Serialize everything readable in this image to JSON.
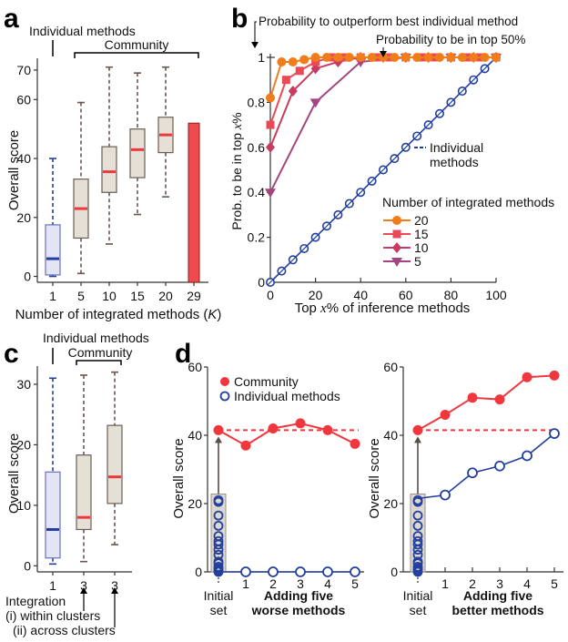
{
  "chart_data": [
    {
      "panel": "a",
      "type": "box",
      "annotations": {
        "individual": "Individual methods",
        "community": "Community"
      },
      "xlabel": "Number of integrated methods (",
      "xlabel_italic": "K",
      "xlabel_end": ")",
      "ylabel": "Overall score",
      "yticks": [
        0,
        20,
        40,
        60,
        70
      ],
      "ylim": [
        -2,
        74
      ],
      "categories": [
        "1",
        "5",
        "10",
        "15",
        "20",
        "29"
      ],
      "boxes": [
        {
          "label": "1",
          "group": "individual",
          "min": 0,
          "q1": 0.5,
          "median": 6,
          "q3": 17.5,
          "max": 40
        },
        {
          "label": "5",
          "group": "community",
          "min": 1,
          "q1": 13,
          "median": 23,
          "q3": 33,
          "max": 59
        },
        {
          "label": "10",
          "group": "community",
          "min": 11,
          "q1": 28.5,
          "median": 35.5,
          "q3": 44,
          "max": 71
        },
        {
          "label": "15",
          "group": "community",
          "min": 21,
          "q1": 33.5,
          "median": 43,
          "q3": 50,
          "max": 69
        },
        {
          "label": "20",
          "group": "community",
          "min": 27,
          "q1": 42,
          "median": 48,
          "q3": 54,
          "max": 71
        }
      ],
      "bar": {
        "label": "29",
        "value": 52
      }
    },
    {
      "panel": "b",
      "type": "line",
      "annotations": {
        "outperform": "Probability to outperform best individual method",
        "top50": "Probability to be in top 50%",
        "individual": "Individual",
        "individual2": "methods"
      },
      "xlabel_pre": "Top ",
      "xlabel_italic": "x",
      "xlabel_post": "% of inference methods",
      "ylabel_pre": "Prob. to be in top ",
      "ylabel_italic": "x",
      "ylabel_post": "%",
      "xticks": [
        0,
        20,
        40,
        60,
        80,
        100
      ],
      "yticks": [
        0,
        0.2,
        0.4,
        0.6,
        0.8,
        1
      ],
      "ytick_labels": [
        "0",
        "0.2",
        "0.4",
        "0.6",
        "0.8",
        "1"
      ],
      "xlim": [
        0,
        100
      ],
      "ylim": [
        0,
        1
      ],
      "legend_title": "Number of integrated methods",
      "legend_position": "bottom-right",
      "individual_series": {
        "name": "Individual methods",
        "x": [
          0,
          5,
          10,
          15,
          20,
          25,
          30,
          35,
          40,
          45,
          50,
          55,
          60,
          65,
          70,
          75,
          80,
          85,
          90,
          95,
          100
        ],
        "y": [
          0,
          0.05,
          0.1,
          0.15,
          0.2,
          0.25,
          0.3,
          0.35,
          0.4,
          0.45,
          0.5,
          0.55,
          0.6,
          0.65,
          0.7,
          0.75,
          0.8,
          0.85,
          0.9,
          0.95,
          1
        ]
      },
      "series": [
        {
          "name": "20",
          "color": "#f07d1a",
          "marker": "circle",
          "x": [
            0,
            5,
            10,
            15,
            20,
            25,
            30,
            35,
            40,
            45,
            50,
            55,
            60,
            65,
            70,
            75,
            80,
            85,
            90,
            95,
            100
          ],
          "y": [
            0.82,
            0.98,
            0.98,
            0.99,
            1,
            1,
            1,
            1,
            1,
            1,
            1,
            1,
            1,
            1,
            1,
            1,
            1,
            1,
            1,
            1,
            1
          ]
        },
        {
          "name": "15",
          "color": "#ea4a55",
          "marker": "square",
          "x": [
            0,
            7,
            13,
            20,
            27,
            33,
            40,
            47,
            53,
            60,
            67,
            73,
            80,
            87,
            93,
            100
          ],
          "y": [
            0.7,
            0.9,
            0.94,
            0.98,
            1,
            1,
            1,
            1,
            1,
            1,
            1,
            1,
            1,
            1,
            1,
            1
          ]
        },
        {
          "name": "10",
          "color": "#c83a5e",
          "marker": "diamond",
          "x": [
            0,
            10,
            20,
            30,
            40,
            50,
            60,
            70,
            80,
            90,
            100
          ],
          "y": [
            0.6,
            0.85,
            0.95,
            0.98,
            1,
            1,
            1,
            1,
            1,
            1,
            1
          ]
        },
        {
          "name": "5",
          "color": "#a3457e",
          "marker": "triangle-down",
          "x": [
            0,
            20,
            40,
            60,
            80,
            100
          ],
          "y": [
            0.4,
            0.8,
            0.98,
            1,
            1,
            1
          ]
        }
      ]
    },
    {
      "panel": "c",
      "type": "box",
      "annotations": {
        "individual": "Individual methods",
        "community": "Community",
        "integration": "Integration",
        "within": "(i) within clusters",
        "across": "(ii) across clusters"
      },
      "ylabel": "Overall score",
      "yticks": [
        0,
        10,
        20,
        30
      ],
      "ylim": [
        -1,
        33
      ],
      "categories": [
        "1",
        "3",
        "3"
      ],
      "boxes": [
        {
          "label": "1",
          "group": "individual",
          "min": 0.3,
          "q1": 1.3,
          "median": 6,
          "q3": 15.5,
          "max": 31
        },
        {
          "label": "3",
          "group": "community",
          "min": 0.7,
          "q1": 6,
          "median": 8,
          "q3": 18.3,
          "max": 31.5
        },
        {
          "label": "3",
          "group": "community",
          "min": 3.5,
          "q1": 10.3,
          "median": 14.7,
          "q3": 23.2,
          "max": 32
        }
      ]
    },
    {
      "panel": "d",
      "type": "line",
      "legend": {
        "community": "Community",
        "individual": "Individual methods"
      },
      "legend_position": "top-left",
      "ylabel": "Overall score",
      "yticks": [
        0,
        20,
        40,
        60
      ],
      "ylim": [
        0,
        60
      ],
      "xtick_labels": [
        "1",
        "2",
        "3",
        "4",
        "5"
      ],
      "initial_label": [
        "Initial",
        "set"
      ],
      "initial_individual": [
        21,
        20.5,
        16.5,
        13.5,
        10.5,
        9,
        8,
        6.5,
        5,
        3,
        2.5,
        1.5,
        1,
        0.5,
        0
      ],
      "subplots": [
        {
          "title": [
            "Adding five",
            "worse methods"
          ],
          "baseline": 41.5,
          "community": [
            41.5,
            37,
            42,
            43.5,
            41.5,
            37.5
          ],
          "individual_added": [
            0,
            0,
            0,
            0,
            0,
            0
          ]
        },
        {
          "title": [
            "Adding five",
            "better methods"
          ],
          "baseline": 41.5,
          "community": [
            41.5,
            46,
            51,
            50.5,
            57,
            57.5
          ],
          "individual_added": [
            21.5,
            22.5,
            29,
            31,
            34,
            40.5
          ]
        }
      ]
    }
  ],
  "colors": {
    "community_red": "#f0373e",
    "individual_blue": "#233f9e",
    "box_fill": "#e4e0d6",
    "box_fill_blue": "#e3e4f6",
    "box_edge": "#6a5d55",
    "whisker_brown": "#6a5650",
    "bar_red": "#ef4b4f"
  }
}
